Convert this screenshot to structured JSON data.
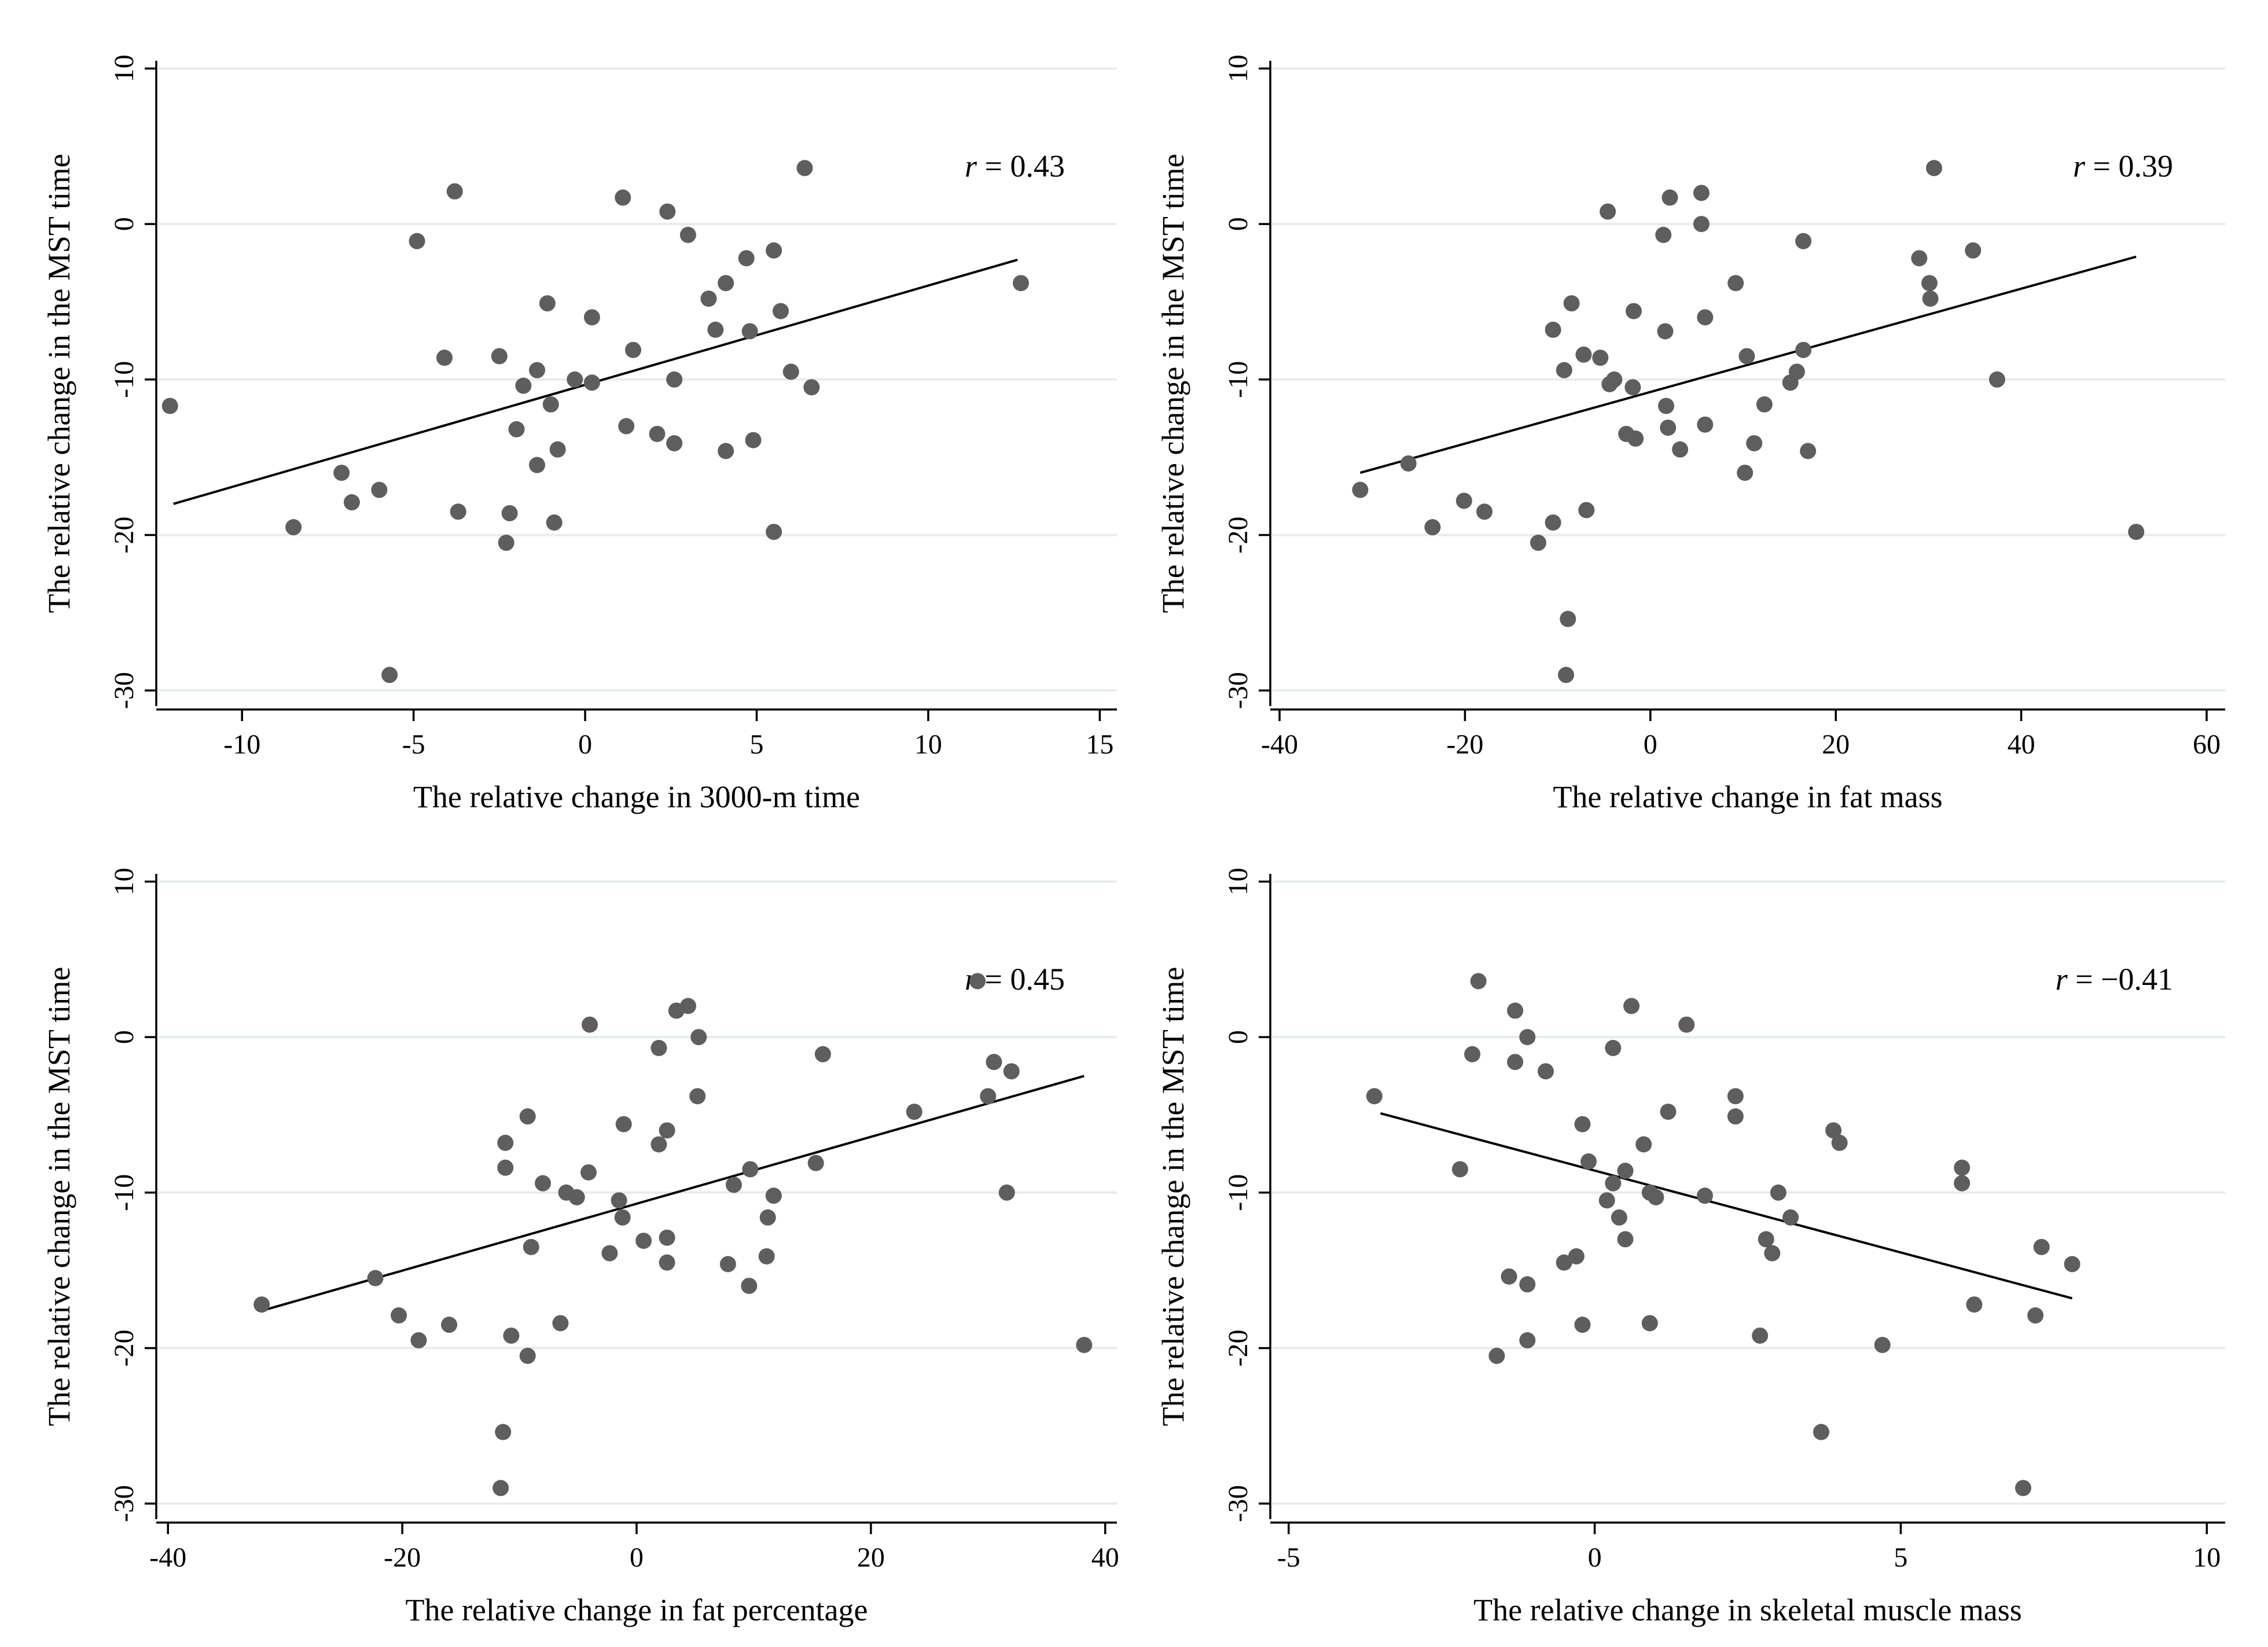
{
  "chart_data": [
    {
      "type": "scatter",
      "title": "",
      "xlabel": "The relative change in 3000-m time",
      "ylabel": "The relative change in the MST time",
      "annotation": {
        "prefix": "r",
        "value": "= 0.43"
      },
      "xlim": [
        -12.5,
        15.5
      ],
      "ylim": [
        -31,
        10.5
      ],
      "xticks": [
        -10,
        -5,
        0,
        5,
        10,
        15
      ],
      "xtick_labels": [
        "-10",
        "-5",
        "0",
        "5",
        "10",
        "15"
      ],
      "yticks": [
        -30,
        -20,
        -10,
        0,
        10
      ],
      "ytick_labels": [
        "-30",
        "-20",
        "-10",
        "0",
        "10"
      ],
      "grid": true,
      "fit_line": {
        "x": [
          -12,
          12.6
        ],
        "y": [
          -18,
          -2.3
        ]
      },
      "points": [
        [
          -12.1,
          -11.7
        ],
        [
          -8.5,
          -19.5
        ],
        [
          -7.1,
          -16.0
        ],
        [
          -6.8,
          -17.9
        ],
        [
          -6.0,
          -17.1
        ],
        [
          -5.7,
          -29.0
        ],
        [
          -4.9,
          -1.1
        ],
        [
          -4.1,
          -8.6
        ],
        [
          -3.8,
          2.1
        ],
        [
          -3.7,
          -18.5
        ],
        [
          -2.5,
          -8.5
        ],
        [
          -2.3,
          -20.5
        ],
        [
          -2.2,
          -18.6
        ],
        [
          -2.0,
          -13.2
        ],
        [
          -1.8,
          -10.4
        ],
        [
          -1.4,
          -15.5
        ],
        [
          -1.4,
          -9.4
        ],
        [
          -1.1,
          -5.1
        ],
        [
          -1.0,
          -11.6
        ],
        [
          -0.9,
          -19.2
        ],
        [
          -0.8,
          -14.5
        ],
        [
          -0.3,
          -10.0
        ],
        [
          0.2,
          -10.2
        ],
        [
          0.2,
          -6.0
        ],
        [
          1.1,
          1.7
        ],
        [
          1.2,
          -13.0
        ],
        [
          1.4,
          -8.1
        ],
        [
          2.1,
          -13.5
        ],
        [
          2.4,
          0.8
        ],
        [
          2.6,
          -10.0
        ],
        [
          2.6,
          -14.1
        ],
        [
          3.0,
          -0.7
        ],
        [
          3.6,
          -4.8
        ],
        [
          3.8,
          -6.8
        ],
        [
          4.1,
          -14.6
        ],
        [
          4.1,
          -3.8
        ],
        [
          4.7,
          -2.2
        ],
        [
          4.8,
          -6.9
        ],
        [
          4.9,
          -13.9
        ],
        [
          5.5,
          -19.8
        ],
        [
          5.5,
          -1.7
        ],
        [
          5.7,
          -5.6
        ],
        [
          6.0,
          -9.5
        ],
        [
          6.4,
          3.6
        ],
        [
          6.6,
          -10.5
        ],
        [
          12.7,
          -3.8
        ]
      ]
    },
    {
      "type": "scatter",
      "title": "",
      "xlabel": "The relative change in fat mass",
      "ylabel": "The relative change in the MST time",
      "annotation": {
        "prefix": "r",
        "value": "= 0.39"
      },
      "xlim": [
        -41,
        62
      ],
      "ylim": [
        -31,
        10.5
      ],
      "xticks": [
        -40,
        -20,
        0,
        20,
        40,
        60
      ],
      "xtick_labels": [
        "-40",
        "-20",
        "0",
        "20",
        "40",
        "60"
      ],
      "yticks": [
        -30,
        -20,
        -10,
        0,
        10
      ],
      "ytick_labels": [
        "-30",
        "-20",
        "-10",
        "0",
        "10"
      ],
      "grid": true,
      "fit_line": {
        "x": [
          -31.3,
          52.4
        ],
        "y": [
          -16.0,
          -2.1
        ]
      },
      "points": [
        [
          -31.3,
          -17.1
        ],
        [
          -26.1,
          -15.4
        ],
        [
          -23.5,
          -19.5
        ],
        [
          -20.1,
          -17.8
        ],
        [
          -17.9,
          -18.5
        ],
        [
          -12.1,
          -20.5
        ],
        [
          -10.5,
          -19.2
        ],
        [
          -10.5,
          -6.8
        ],
        [
          -9.3,
          -9.4
        ],
        [
          -9.1,
          -29.0
        ],
        [
          -8.9,
          -25.4
        ],
        [
          -8.5,
          -5.1
        ],
        [
          -7.2,
          -8.4
        ],
        [
          -6.9,
          -18.4
        ],
        [
          -5.4,
          -8.6
        ],
        [
          -4.6,
          0.8
        ],
        [
          -4.4,
          -10.3
        ],
        [
          -3.9,
          -10.0
        ],
        [
          -2.6,
          -13.5
        ],
        [
          -1.9,
          -10.5
        ],
        [
          -1.8,
          -5.6
        ],
        [
          -1.6,
          -13.8
        ],
        [
          1.4,
          -0.7
        ],
        [
          1.6,
          -6.9
        ],
        [
          1.7,
          -11.7
        ],
        [
          1.9,
          -13.1
        ],
        [
          2.1,
          1.7
        ],
        [
          3.2,
          -14.5
        ],
        [
          5.5,
          0.0
        ],
        [
          5.5,
          2.0
        ],
        [
          5.9,
          -12.9
        ],
        [
          5.9,
          -6.0
        ],
        [
          9.2,
          -3.8
        ],
        [
          10.2,
          -16.0
        ],
        [
          10.4,
          -8.5
        ],
        [
          11.2,
          -14.1
        ],
        [
          12.3,
          -11.6
        ],
        [
          15.1,
          -10.2
        ],
        [
          15.8,
          -9.5
        ],
        [
          16.5,
          -1.1
        ],
        [
          16.5,
          -8.1
        ],
        [
          17.0,
          -14.6
        ],
        [
          29.0,
          -2.2
        ],
        [
          30.1,
          -3.8
        ],
        [
          30.2,
          -4.8
        ],
        [
          30.6,
          3.6
        ],
        [
          34.8,
          -1.7
        ],
        [
          37.4,
          -10.0
        ],
        [
          52.4,
          -19.8
        ]
      ]
    },
    {
      "type": "scatter",
      "title": "",
      "xlabel": "The relative change in fat percentage",
      "ylabel": "The relative change in the MST time",
      "annotation": {
        "prefix": "r",
        "value": "= 0.45"
      },
      "xlim": [
        -41,
        41
      ],
      "ylim": [
        -31,
        10.5
      ],
      "xticks": [
        -40,
        -20,
        0,
        20,
        40
      ],
      "xtick_labels": [
        "-40",
        "-20",
        "0",
        "20",
        "40"
      ],
      "yticks": [
        -30,
        -20,
        -10,
        0,
        10
      ],
      "ytick_labels": [
        "-30",
        "-20",
        "-10",
        "0",
        "10"
      ],
      "grid": true,
      "fit_line": {
        "x": [
          -32,
          38.2
        ],
        "y": [
          -17.6,
          -2.5
        ]
      },
      "points": [
        [
          -32.0,
          -17.2
        ],
        [
          -22.3,
          -15.5
        ],
        [
          -20.3,
          -17.9
        ],
        [
          -18.6,
          -19.5
        ],
        [
          -16.0,
          -18.5
        ],
        [
          -11.6,
          -29.0
        ],
        [
          -11.4,
          -25.4
        ],
        [
          -11.2,
          -6.8
        ],
        [
          -11.2,
          -8.4
        ],
        [
          -10.7,
          -19.2
        ],
        [
          -9.3,
          -20.5
        ],
        [
          -9.3,
          -5.1
        ],
        [
          -9.0,
          -13.5
        ],
        [
          -8.0,
          -9.4
        ],
        [
          -6.5,
          -18.4
        ],
        [
          -6.0,
          -10.0
        ],
        [
          -5.1,
          -10.3
        ],
        [
          -4.1,
          -8.7
        ],
        [
          -4.0,
          0.8
        ],
        [
          -2.3,
          -13.9
        ],
        [
          -1.5,
          -10.5
        ],
        [
          -1.2,
          -11.6
        ],
        [
          -1.1,
          -5.6
        ],
        [
          0.6,
          -13.1
        ],
        [
          1.9,
          -0.7
        ],
        [
          1.9,
          -6.9
        ],
        [
          2.6,
          -12.9
        ],
        [
          2.6,
          -14.5
        ],
        [
          2.6,
          -6.0
        ],
        [
          3.4,
          1.7
        ],
        [
          4.4,
          2.0
        ],
        [
          5.2,
          -3.8
        ],
        [
          5.3,
          0.0
        ],
        [
          7.8,
          -14.6
        ],
        [
          8.3,
          -9.5
        ],
        [
          9.6,
          -16.0
        ],
        [
          9.7,
          -8.5
        ],
        [
          11.1,
          -14.1
        ],
        [
          11.2,
          -11.6
        ],
        [
          11.7,
          -10.2
        ],
        [
          15.3,
          -8.1
        ],
        [
          15.9,
          -1.1
        ],
        [
          23.7,
          -4.8
        ],
        [
          29.1,
          3.6
        ],
        [
          30.0,
          -3.8
        ],
        [
          30.5,
          -1.6
        ],
        [
          31.6,
          -10.0
        ],
        [
          32.0,
          -2.2
        ],
        [
          38.2,
          -19.8
        ]
      ]
    },
    {
      "type": "scatter",
      "title": "",
      "xlabel": "The relative change in skeletal muscle mass",
      "ylabel": "The relative change in the MST time",
      "annotation": {
        "prefix": "r",
        "value": "= −0.41"
      },
      "xlim": [
        -5.3,
        10.3
      ],
      "ylim": [
        -31,
        10.5
      ],
      "xticks": [
        -5,
        0,
        5,
        10
      ],
      "xtick_labels": [
        "-5",
        "0",
        "5",
        "10"
      ],
      "yticks": [
        -30,
        -20,
        -10,
        0,
        10
      ],
      "ytick_labels": [
        "-30",
        "-20",
        "-10",
        "0",
        "10"
      ],
      "grid": true,
      "fit_line": {
        "x": [
          -3.5,
          7.8
        ],
        "y": [
          -4.9,
          -16.8
        ]
      },
      "points": [
        [
          -3.6,
          -3.8
        ],
        [
          -2.2,
          -8.5
        ],
        [
          -2.0,
          -1.1
        ],
        [
          -1.9,
          3.6
        ],
        [
          -1.6,
          -20.5
        ],
        [
          -1.4,
          -15.4
        ],
        [
          -1.3,
          -1.6
        ],
        [
          -1.3,
          1.7
        ],
        [
          -1.1,
          0.0
        ],
        [
          -1.1,
          -19.5
        ],
        [
          -1.1,
          -15.9
        ],
        [
          -0.8,
          -2.2
        ],
        [
          -0.5,
          -14.5
        ],
        [
          -0.3,
          -14.1
        ],
        [
          -0.2,
          -18.5
        ],
        [
          -0.2,
          -5.6
        ],
        [
          -0.1,
          -8.0
        ],
        [
          0.2,
          -10.5
        ],
        [
          0.3,
          -9.4
        ],
        [
          0.3,
          -0.7
        ],
        [
          0.4,
          -11.6
        ],
        [
          0.5,
          -13.0
        ],
        [
          0.5,
          -8.6
        ],
        [
          0.6,
          2.0
        ],
        [
          0.8,
          -6.9
        ],
        [
          0.9,
          -10.0
        ],
        [
          0.9,
          -18.4
        ],
        [
          1.0,
          -10.3
        ],
        [
          1.2,
          -4.8
        ],
        [
          1.5,
          0.8
        ],
        [
          1.8,
          -10.2
        ],
        [
          2.3,
          -5.1
        ],
        [
          2.3,
          -3.8
        ],
        [
          2.7,
          -19.2
        ],
        [
          2.8,
          -13.0
        ],
        [
          2.9,
          -13.9
        ],
        [
          3.0,
          -10.0
        ],
        [
          3.2,
          -11.6
        ],
        [
          3.7,
          -25.4
        ],
        [
          3.9,
          -6.0
        ],
        [
          4.0,
          -6.8
        ],
        [
          4.7,
          -19.8
        ],
        [
          6.0,
          -9.4
        ],
        [
          6.0,
          -8.4
        ],
        [
          6.2,
          -17.2
        ],
        [
          7.0,
          -29.0
        ],
        [
          7.2,
          -17.9
        ],
        [
          7.3,
          -13.5
        ],
        [
          7.8,
          -14.6
        ]
      ]
    }
  ]
}
